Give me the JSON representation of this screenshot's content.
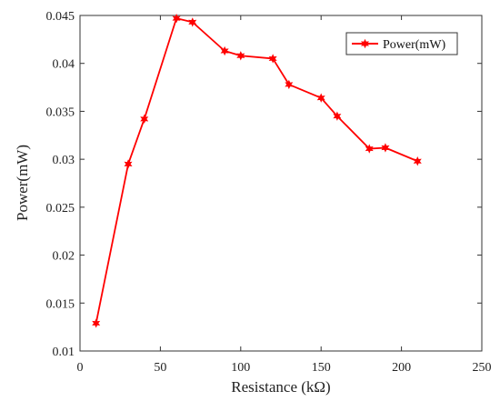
{
  "chart_data": {
    "type": "line",
    "title": "",
    "xlabel": "Resistance (kΩ)",
    "ylabel": "Power(mW)",
    "xlim": [
      0,
      250
    ],
    "ylim": [
      0.01,
      0.045
    ],
    "xticks": [
      0,
      50,
      100,
      150,
      200,
      250
    ],
    "yticks": [
      0.01,
      0.015,
      0.02,
      0.025,
      0.03,
      0.035,
      0.04,
      0.045
    ],
    "xtick_labels": [
      "0",
      "50",
      "100",
      "150",
      "200",
      "250"
    ],
    "ytick_labels": [
      "0.01",
      "0.015",
      "0.02",
      "0.025",
      "0.03",
      "0.035",
      "0.04",
      "0.045"
    ],
    "grid": false,
    "legend_position": "top-right",
    "series": [
      {
        "name": "Power(mW)",
        "color": "#ff0000",
        "marker": "star",
        "x": [
          10,
          30,
          40,
          60,
          70,
          90,
          100,
          120,
          130,
          150,
          160,
          180,
          190,
          210
        ],
        "y": [
          0.0129,
          0.0295,
          0.0342,
          0.0447,
          0.0443,
          0.0413,
          0.0408,
          0.0405,
          0.0378,
          0.0364,
          0.0345,
          0.0311,
          0.0312,
          0.0298
        ]
      }
    ]
  }
}
